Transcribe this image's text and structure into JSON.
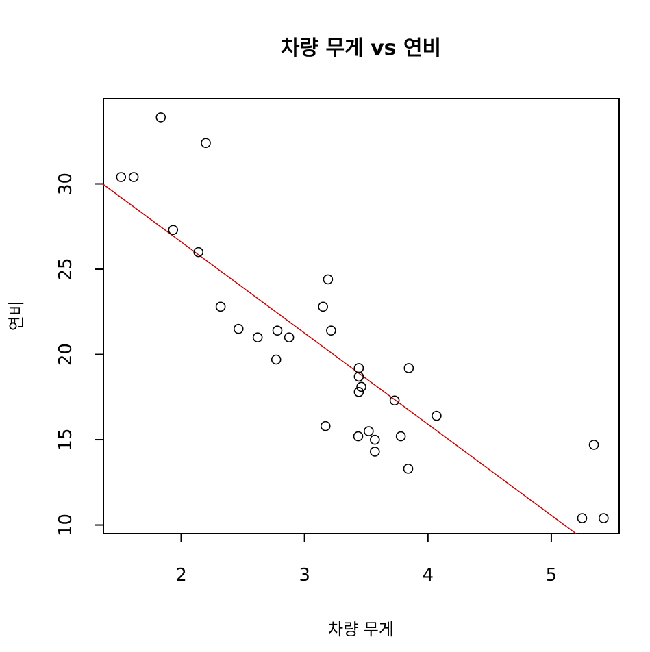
{
  "chart_data": {
    "type": "scatter",
    "title": "차량 무게 vs 연비",
    "xlabel": "차량 무게",
    "ylabel": "연비",
    "xlim": [
      1.37,
      5.55
    ],
    "ylim": [
      9.5,
      35.0
    ],
    "xticks": [
      2,
      3,
      4,
      5
    ],
    "yticks": [
      10,
      15,
      20,
      25,
      30
    ],
    "grid": false,
    "legend": "none",
    "points": [
      {
        "x": 2.62,
        "y": 21.0
      },
      {
        "x": 2.875,
        "y": 21.0
      },
      {
        "x": 2.32,
        "y": 22.8
      },
      {
        "x": 3.215,
        "y": 21.4
      },
      {
        "x": 3.44,
        "y": 18.7
      },
      {
        "x": 3.46,
        "y": 18.1
      },
      {
        "x": 3.57,
        "y": 14.3
      },
      {
        "x": 3.19,
        "y": 24.4
      },
      {
        "x": 3.15,
        "y": 22.8
      },
      {
        "x": 3.44,
        "y": 19.2
      },
      {
        "x": 3.44,
        "y": 17.8
      },
      {
        "x": 4.07,
        "y": 16.4
      },
      {
        "x": 3.73,
        "y": 17.3
      },
      {
        "x": 3.78,
        "y": 15.2
      },
      {
        "x": 5.25,
        "y": 10.4
      },
      {
        "x": 5.424,
        "y": 10.4
      },
      {
        "x": 5.345,
        "y": 14.7
      },
      {
        "x": 2.2,
        "y": 32.4
      },
      {
        "x": 1.615,
        "y": 30.4
      },
      {
        "x": 1.835,
        "y": 33.9
      },
      {
        "x": 2.465,
        "y": 21.5
      },
      {
        "x": 3.52,
        "y": 15.5
      },
      {
        "x": 3.435,
        "y": 15.2
      },
      {
        "x": 3.84,
        "y": 13.3
      },
      {
        "x": 3.845,
        "y": 19.2
      },
      {
        "x": 1.935,
        "y": 27.3
      },
      {
        "x": 2.14,
        "y": 26.0
      },
      {
        "x": 1.513,
        "y": 30.4
      },
      {
        "x": 3.17,
        "y": 15.8
      },
      {
        "x": 2.77,
        "y": 19.7
      },
      {
        "x": 3.57,
        "y": 15.0
      },
      {
        "x": 2.78,
        "y": 21.4
      }
    ],
    "regression_line": {
      "intercept": 37.285,
      "slope": -5.344,
      "color": "#cc0000"
    },
    "point_color": "#000000"
  }
}
